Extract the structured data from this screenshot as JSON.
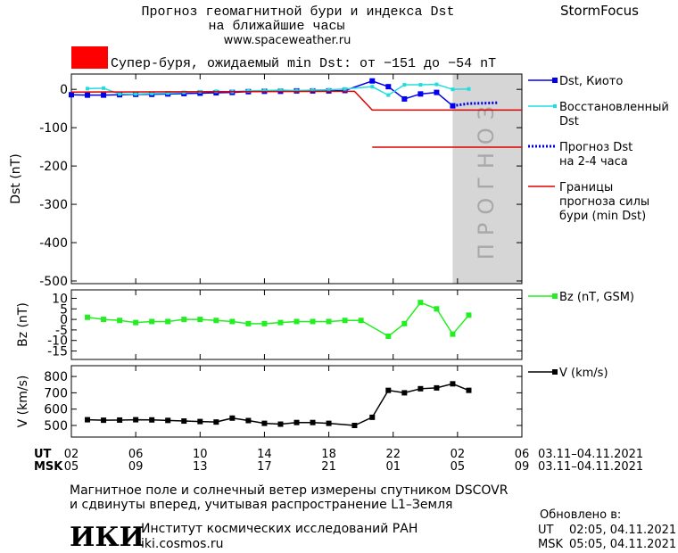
{
  "header": {
    "title_line1": "Прогноз геомагнитной бури и индекса Dst",
    "title_line2": "на ближайшие часы",
    "url": "www.spaceweather.ru",
    "brand": "StormFocus"
  },
  "banner": {
    "color": "#ff0000",
    "text": "Супер-буря, ожидаемый min Dst: от −151 до −54 nT"
  },
  "chart_data": [
    {
      "type": "line",
      "y_label": "Dst (nT)",
      "xlim": [
        0,
        28
      ],
      "ylim": [
        -507,
        40
      ],
      "yticks": [
        0,
        -100,
        -200,
        -300,
        -400,
        -500
      ],
      "forecast_span": [
        23.7,
        28
      ],
      "forecast_label": "ПРОГНОЗ",
      "series": [
        {
          "name": "Dst, Киото",
          "color": "#0000ee",
          "marker": true,
          "x": [
            0,
            1,
            2,
            3,
            4,
            5,
            6,
            7,
            8,
            9,
            10,
            11,
            12,
            13,
            14,
            15,
            16,
            17,
            18.7,
            19.7,
            20.7,
            21.7,
            22.7,
            23.7
          ],
          "values": [
            -14,
            -15,
            -15,
            -14,
            -13,
            -13,
            -12,
            -11,
            -10,
            -9,
            -8,
            -6,
            -5,
            -5,
            -4,
            -4,
            -4,
            -3,
            22,
            7,
            -25,
            -12,
            -8,
            -43
          ]
        },
        {
          "name": "Восстановленный\nDst",
          "color": "#22dddd",
          "marker": true,
          "x": [
            1,
            2,
            3,
            4,
            5,
            6,
            7,
            8,
            9,
            10,
            11,
            12,
            13,
            14,
            15,
            16,
            17,
            18.7,
            19.7,
            20.7,
            21.7,
            22.7,
            23.7,
            24.7
          ],
          "values": [
            2,
            3,
            -12,
            -12,
            -11,
            -10,
            -8,
            -6,
            -5,
            -6,
            -4,
            -3,
            -2,
            -3,
            -2,
            -1,
            1,
            7,
            -15,
            12,
            12,
            13,
            0,
            1
          ]
        },
        {
          "name": "Прогноз Dst\nна 2-4 часа",
          "color": "#0000ee",
          "marker": false,
          "dash": "dotted",
          "x": [
            23.7,
            24.7,
            25.7,
            26.5
          ],
          "values": [
            -43,
            -37,
            -36,
            -35
          ]
        },
        {
          "name": "Границы\nпрогноза силы\nбури (min Dst)",
          "color": "#dd0000",
          "marker": false,
          "x": [
            0,
            17.6,
            18.7,
            28,
            null,
            18.7,
            28
          ],
          "values": [
            -7,
            -5,
            -54,
            -54,
            null,
            -151,
            -151
          ]
        }
      ]
    },
    {
      "type": "line",
      "y_label": "Bz (nT)",
      "xlim": [
        0,
        28
      ],
      "ylim": [
        -19,
        14
      ],
      "yticks": [
        10,
        5,
        0,
        -5,
        -10,
        -15
      ],
      "series": [
        {
          "name": "Bz (nT, GSM)",
          "color": "#22ee22",
          "marker": true,
          "x": [
            1,
            2,
            3,
            4,
            5,
            6,
            7,
            8,
            9,
            10,
            11,
            12,
            13,
            14,
            15,
            16,
            17,
            18,
            19.7,
            20.7,
            21.7,
            22.7,
            23.7,
            24.7
          ],
          "values": [
            1,
            0,
            -0.5,
            -1.5,
            -1,
            -1,
            0,
            0,
            -0.5,
            -1,
            -2,
            -2,
            -1.5,
            -1,
            -1,
            -1,
            -0.5,
            -0.5,
            -8,
            -2,
            8,
            5,
            -7,
            2
          ]
        }
      ]
    },
    {
      "type": "line",
      "y_label": "V (km/s)",
      "xlim": [
        0,
        28
      ],
      "ylim": [
        429,
        866
      ],
      "yticks": [
        800,
        700,
        600,
        500
      ],
      "series": [
        {
          "name": "V (km/s)",
          "color": "#000000",
          "marker": true,
          "x": [
            1,
            2,
            3,
            4,
            5,
            6,
            7,
            8,
            9,
            10,
            11,
            12,
            13,
            14,
            15,
            16,
            17.6,
            18.7,
            19.7,
            20.7,
            21.7,
            22.7,
            23.7,
            24.7
          ],
          "values": [
            535,
            532,
            533,
            535,
            534,
            531,
            527,
            524,
            521,
            545,
            530,
            513,
            508,
            518,
            518,
            513,
            500,
            550,
            715,
            700,
            725,
            730,
            755,
            715
          ]
        }
      ]
    }
  ],
  "time_axis": {
    "ut_label": "UT",
    "msk_label": "MSK",
    "ut_range": "03.11–04.11.2021",
    "msk_range": "03.11–04.11.2021",
    "ut_ticks": [
      {
        "value": 0,
        "label": "02"
      },
      {
        "value": 4,
        "label": "06"
      },
      {
        "value": 8,
        "label": "10"
      },
      {
        "value": 12,
        "label": "14"
      },
      {
        "value": 16,
        "label": "18"
      },
      {
        "value": 20,
        "label": "22"
      },
      {
        "value": 24,
        "label": "02"
      },
      {
        "value": 28,
        "label": "06"
      }
    ],
    "msk_ticks": [
      {
        "value": 0,
        "label": "05"
      },
      {
        "value": 4,
        "label": "09"
      },
      {
        "value": 8,
        "label": "13"
      },
      {
        "value": 12,
        "label": "17"
      },
      {
        "value": 16,
        "label": "21"
      },
      {
        "value": 20,
        "label": "01"
      },
      {
        "value": 24,
        "label": "05"
      },
      {
        "value": 28,
        "label": "09"
      }
    ]
  },
  "footer": {
    "note_line1": "Магнитное поле и солнечный ветер измерены спутником DSCOVR",
    "note_line2": "и сдвинуты вперед, учитывая распространение L1–Земля",
    "logo": "ИКИ",
    "institute": "Институт космических исследований РАН",
    "site": "iki.cosmos.ru",
    "updated": "Обновлено в:",
    "ut_label": "UT",
    "ut_time": "02:05, 04.11.2021",
    "msk_label": "MSK",
    "msk_time": "05:05, 04.11.2021"
  }
}
